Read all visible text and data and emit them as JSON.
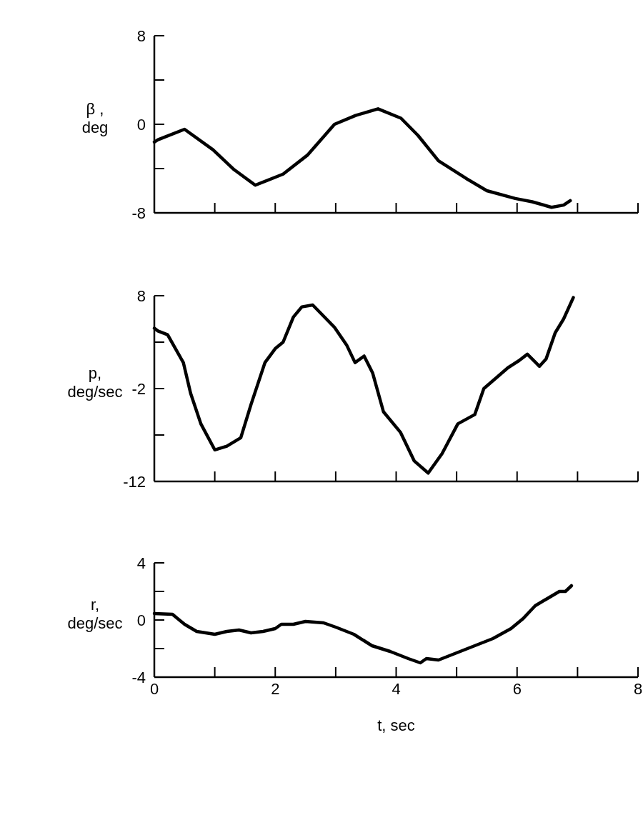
{
  "chart_data": [
    {
      "type": "line",
      "ylabel": "β ,\ndeg",
      "xlim": [
        0,
        8
      ],
      "xticks": [
        0,
        1,
        2,
        3,
        4,
        5,
        6,
        7,
        8
      ],
      "ylim": [
        -8,
        8
      ],
      "yticks": [
        -8,
        {
          "value": -4,
          "label": null
        },
        0,
        {
          "value": 4,
          "label": null
        },
        8
      ],
      "tick_labels": "y",
      "series": [
        {
          "color": "#000000",
          "x": [
            0,
            0.06,
            0.5,
            0.97,
            1.32,
            1.67,
            2.13,
            2.53,
            2.98,
            3.33,
            3.7,
            4.08,
            4.36,
            4.7,
            5.16,
            5.5,
            5.97,
            6.25,
            6.57,
            6.77,
            6.88
          ],
          "values": [
            -1.6,
            -1.4,
            -0.45,
            -2.3,
            -4.1,
            -5.5,
            -4.5,
            -2.8,
            0,
            0.8,
            1.4,
            0.55,
            -1.0,
            -3.3,
            -4.9,
            -6.0,
            -6.7,
            -7.0,
            -7.5,
            -7.3,
            -6.9
          ]
        }
      ]
    },
    {
      "type": "line",
      "ylabel": "p,\ndeg/sec",
      "xlim": [
        0,
        8
      ],
      "xticks": [
        0,
        1,
        2,
        3,
        4,
        5,
        6,
        7,
        8
      ],
      "ylim": [
        -12,
        8
      ],
      "yticks": [
        -12,
        {
          "value": -7,
          "label": null
        },
        -2,
        {
          "value": 3,
          "label": null
        },
        8
      ],
      "tick_labels": "y",
      "series": [
        {
          "color": "#000000",
          "x": [
            0,
            0.06,
            0.22,
            0.48,
            0.6,
            0.77,
            1.0,
            1.2,
            1.43,
            1.6,
            1.83,
            2.0,
            2.13,
            2.3,
            2.44,
            2.62,
            2.98,
            3.18,
            3.32,
            3.47,
            3.61,
            3.79,
            4.07,
            4.3,
            4.53,
            4.76,
            5.02,
            5.3,
            5.45,
            5.85,
            6.03,
            6.17,
            6.37,
            6.48,
            6.63,
            6.77,
            6.93
          ],
          "values": [
            4.5,
            4.2,
            3.8,
            0.8,
            -2.5,
            -5.8,
            -8.6,
            -8.2,
            -7.3,
            -3.7,
            0.8,
            2.3,
            3.0,
            5.7,
            6.8,
            7.0,
            4.6,
            2.7,
            0.8,
            1.5,
            -0.3,
            -4.5,
            -6.7,
            -9.8,
            -11.1,
            -9.0,
            -5.8,
            -4.8,
            -2.0,
            0.25,
            1.0,
            1.7,
            0.4,
            1.2,
            4.0,
            5.5,
            7.8
          ]
        }
      ]
    },
    {
      "type": "line",
      "ylabel": "r,\ndeg/sec",
      "xlabel": "t, sec",
      "xlim": [
        0,
        8
      ],
      "xticks": [
        0,
        {
          "value": 1,
          "label": null
        },
        2,
        {
          "value": 3,
          "label": null
        },
        4,
        {
          "value": 5,
          "label": null
        },
        6,
        {
          "value": 7,
          "label": null
        },
        8
      ],
      "ylim": [
        -4,
        4
      ],
      "yticks": [
        -4,
        {
          "value": -2,
          "label": null
        },
        0,
        {
          "value": 2,
          "label": null
        },
        4
      ],
      "series": [
        {
          "color": "#000000",
          "x": [
            0,
            0.3,
            0.5,
            0.7,
            1.0,
            1.2,
            1.4,
            1.6,
            1.8,
            2.0,
            2.1,
            2.3,
            2.5,
            2.8,
            3.0,
            3.3,
            3.6,
            3.9,
            4.2,
            4.4,
            4.5,
            4.7,
            5.0,
            5.3,
            5.6,
            5.9,
            6.1,
            6.3,
            6.5,
            6.7,
            6.8,
            6.9
          ],
          "values": [
            0.45,
            0.4,
            -0.3,
            -0.8,
            -1.0,
            -0.8,
            -0.7,
            -0.9,
            -0.8,
            -0.6,
            -0.3,
            -0.3,
            -0.1,
            -0.2,
            -0.5,
            -1.0,
            -1.8,
            -2.2,
            -2.7,
            -3.0,
            -2.7,
            -2.8,
            -2.3,
            -1.8,
            -1.3,
            -0.6,
            0.1,
            1.0,
            1.5,
            2.0,
            2.0,
            2.4
          ]
        }
      ]
    }
  ]
}
